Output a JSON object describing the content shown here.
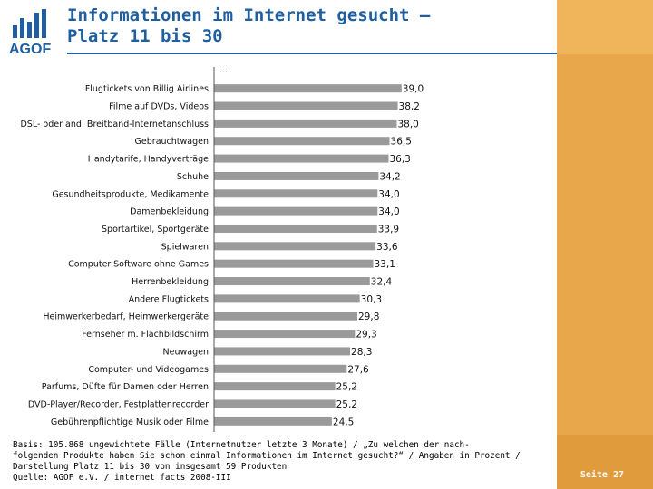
{
  "brand": {
    "logo_text": "AGOF",
    "accent": "#1f5fa0",
    "side_color": "#e8a74a"
  },
  "header": {
    "title_line1": "Informationen im Internet gesucht –",
    "title_line2": "Platz 11 bis 30"
  },
  "chart_data": {
    "type": "bar",
    "orientation": "horizontal",
    "truncation_marker": "…",
    "bar_color": "#9a9a9a",
    "categories": [
      "Flugtickets von Billig Airlines",
      "Filme auf DVDs, Videos",
      "DSL- oder and. Breitband-Internetanschluss",
      "Gebrauchtwagen",
      "Handytarife, Handyverträge",
      "Schuhe",
      "Gesundheitsprodukte, Medikamente",
      "Damenbekleidung",
      "Sportartikel, Sportgeräte",
      "Spielwaren",
      "Computer-Software ohne Games",
      "Herrenbekleidung",
      "Andere Flugtickets",
      "Heimwerkerbedarf, Heimwerkergeräte",
      "Fernseher m. Flachbildschirm",
      "Neuwagen",
      "Computer- und Videogames",
      "Parfums, Düfte für Damen oder Herren",
      "DVD-Player/Recorder, Festplattenrecorder",
      "Gebührenpflichtige Musik oder Filme"
    ],
    "values": [
      39.0,
      38.2,
      38.0,
      36.5,
      36.3,
      34.2,
      34.0,
      34.0,
      33.9,
      33.6,
      33.1,
      32.4,
      30.3,
      29.8,
      29.3,
      28.3,
      27.6,
      25.2,
      25.2,
      24.5
    ],
    "value_labels": [
      "39,0",
      "38,2",
      "38,0",
      "36,5",
      "36,3",
      "34,2",
      "34,0",
      "34,0",
      "33,9",
      "33,6",
      "33,1",
      "32,4",
      "30,3",
      "29,8",
      "29,3",
      "28,3",
      "27,6",
      "25,2",
      "25,2",
      "24,5"
    ],
    "xlim": [
      0,
      43
    ]
  },
  "footnote": {
    "line1": "Basis: 105.868 ungewichtete Fälle (Internetnutzer letzte 3 Monate) / „Zu welchen der nach-",
    "line2": "folgenden Produkte haben Sie schon einmal Informationen im Internet gesucht?“ / Angaben in Prozent /",
    "line3": "Darstellung Platz 11 bis 30 von insgesamt 59 Produkten",
    "line4": "Quelle: AGOF e.V. / internet facts 2008-III"
  },
  "footer": {
    "page_label": "Seite 27"
  }
}
